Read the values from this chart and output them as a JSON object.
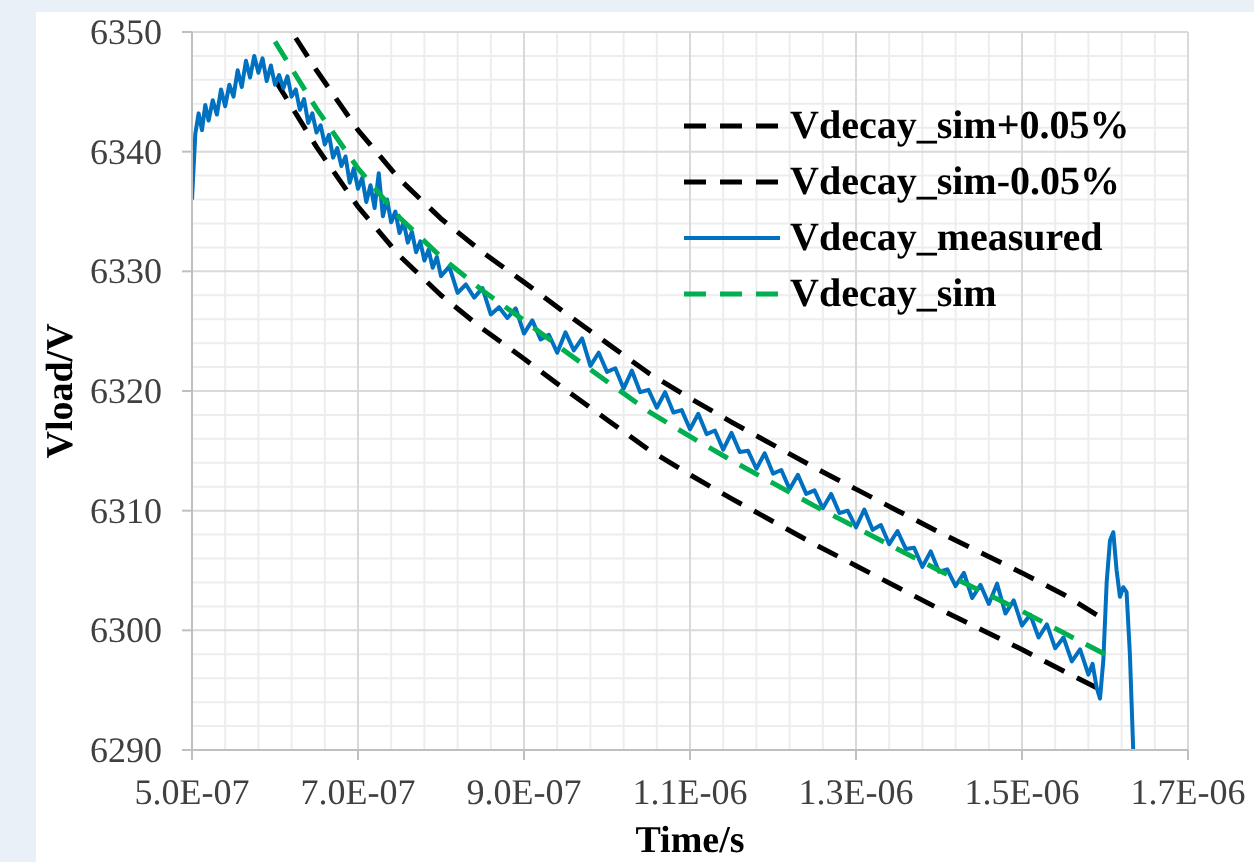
{
  "chart_data": {
    "type": "line",
    "xlabel": "Time/s",
    "ylabel": "Vload/V",
    "xlim": [
      5e-07,
      1.7e-06
    ],
    "xticks": [
      {
        "value": 5e-07,
        "label": "5.0E-07"
      },
      {
        "value": 5.4e-07,
        "label": null
      },
      {
        "value": 5.8e-07,
        "label": null
      },
      {
        "value": 6.2e-07,
        "label": null
      },
      {
        "value": 6.6e-07,
        "label": null
      },
      {
        "value": 7e-07,
        "label": "7.0E-07"
      },
      {
        "value": 7.4e-07,
        "label": null
      },
      {
        "value": 7.8e-07,
        "label": null
      },
      {
        "value": 8.2e-07,
        "label": null
      },
      {
        "value": 8.6e-07,
        "label": null
      },
      {
        "value": 9e-07,
        "label": "9.0E-07"
      },
      {
        "value": 9.4e-07,
        "label": null
      },
      {
        "value": 9.8e-07,
        "label": null
      },
      {
        "value": 1.02e-06,
        "label": null
      },
      {
        "value": 1.06e-06,
        "label": null
      },
      {
        "value": 1.1e-06,
        "label": "1.1E-06"
      },
      {
        "value": 1.14e-06,
        "label": null
      },
      {
        "value": 1.18e-06,
        "label": null
      },
      {
        "value": 1.22e-06,
        "label": null
      },
      {
        "value": 1.26e-06,
        "label": null
      },
      {
        "value": 1.3e-06,
        "label": "1.3E-06"
      },
      {
        "value": 1.34e-06,
        "label": null
      },
      {
        "value": 1.38e-06,
        "label": null
      },
      {
        "value": 1.42e-06,
        "label": null
      },
      {
        "value": 1.46e-06,
        "label": null
      },
      {
        "value": 1.5e-06,
        "label": "1.5E-06"
      },
      {
        "value": 1.54e-06,
        "label": null
      },
      {
        "value": 1.58e-06,
        "label": null
      },
      {
        "value": 1.62e-06,
        "label": null
      },
      {
        "value": 1.66e-06,
        "label": null
      },
      {
        "value": 1.7e-06,
        "label": "1.7E-06"
      }
    ],
    "ylim": [
      6290,
      6350
    ],
    "yticks": [
      6290,
      {
        "value": 6292,
        "label": null
      },
      {
        "value": 6294,
        "label": null
      },
      {
        "value": 6296,
        "label": null
      },
      {
        "value": 6298,
        "label": null
      },
      6300,
      {
        "value": 6302,
        "label": null
      },
      {
        "value": 6304,
        "label": null
      },
      {
        "value": 6306,
        "label": null
      },
      {
        "value": 6308,
        "label": null
      },
      6310,
      {
        "value": 6312,
        "label": null
      },
      {
        "value": 6314,
        "label": null
      },
      {
        "value": 6316,
        "label": null
      },
      {
        "value": 6318,
        "label": null
      },
      6320,
      {
        "value": 6322,
        "label": null
      },
      {
        "value": 6324,
        "label": null
      },
      {
        "value": 6326,
        "label": null
      },
      {
        "value": 6328,
        "label": null
      },
      6330,
      {
        "value": 6332,
        "label": null
      },
      {
        "value": 6334,
        "label": null
      },
      {
        "value": 6336,
        "label": null
      },
      {
        "value": 6338,
        "label": null
      },
      6340,
      {
        "value": 6342,
        "label": null
      },
      {
        "value": 6344,
        "label": null
      },
      {
        "value": 6346,
        "label": null
      },
      {
        "value": 6348,
        "label": null
      },
      6350
    ],
    "grid": true,
    "legend": "top right",
    "series": [
      {
        "name": "Vdecay_sim+0.05%",
        "color": "#000000",
        "line_style": "dashed",
        "x": [
          6.25e-07,
          6.5e-07,
          7e-07,
          7.5e-07,
          8e-07,
          8.5e-07,
          9e-07,
          9.5e-07,
          1e-06,
          1.05e-06,
          1.1e-06,
          1.15e-06,
          1.2e-06,
          1.25e-06,
          1.3e-06,
          1.35e-06,
          1.4e-06,
          1.45e-06,
          1.5e-06,
          1.55e-06,
          1.59e-06
        ],
        "values": [
          6349.5,
          6346.8,
          6341.8,
          6337.7,
          6334.4,
          6331.6,
          6329.1,
          6326.5,
          6324.0,
          6321.5,
          6319.4,
          6317.4,
          6315.5,
          6313.6,
          6311.8,
          6310.0,
          6308.2,
          6306.5,
          6304.8,
          6303.0,
          6301.3
        ]
      },
      {
        "name": "Vdecay_sim-0.05%",
        "color": "#000000",
        "line_style": "dashed",
        "x": [
          6e-07,
          6.5e-07,
          7e-07,
          7.5e-07,
          8e-07,
          8.5e-07,
          9e-07,
          9.5e-07,
          1e-06,
          1.05e-06,
          1.1e-06,
          1.15e-06,
          1.2e-06,
          1.25e-06,
          1.3e-06,
          1.35e-06,
          1.4e-06,
          1.45e-06,
          1.5e-06,
          1.55e-06,
          1.59e-06
        ],
        "values": [
          6346.0,
          6340.4,
          6335.4,
          6331.3,
          6328.0,
          6325.2,
          6322.7,
          6320.1,
          6317.6,
          6315.1,
          6313.0,
          6311.0,
          6309.1,
          6307.2,
          6305.4,
          6303.6,
          6301.8,
          6300.1,
          6298.4,
          6296.6,
          6295.2
        ]
      },
      {
        "name": "Vdecay_measured",
        "color": "#0070c0",
        "line_style": "solid",
        "x": [
          5e-07,
          5.04e-07,
          5.08e-07,
          5.12e-07,
          5.16e-07,
          5.2e-07,
          5.25e-07,
          5.3e-07,
          5.35e-07,
          5.4e-07,
          5.45e-07,
          5.5e-07,
          5.55e-07,
          5.6e-07,
          5.65e-07,
          5.7e-07,
          5.75e-07,
          5.8e-07,
          5.85e-07,
          5.9e-07,
          5.95e-07,
          6e-07,
          6.05e-07,
          6.1e-07,
          6.15e-07,
          6.2e-07,
          6.25e-07,
          6.3e-07,
          6.35e-07,
          6.4e-07,
          6.45e-07,
          6.5e-07,
          6.55e-07,
          6.6e-07,
          6.65e-07,
          6.7e-07,
          6.75e-07,
          6.8e-07,
          6.85e-07,
          6.9e-07,
          6.95e-07,
          7e-07,
          7.05e-07,
          7.1e-07,
          7.15e-07,
          7.2e-07,
          7.25e-07,
          7.3e-07,
          7.35e-07,
          7.4e-07,
          7.45e-07,
          7.5e-07,
          7.55e-07,
          7.6e-07,
          7.65e-07,
          7.7e-07,
          7.75e-07,
          7.8e-07,
          7.85e-07,
          7.9e-07,
          7.95e-07,
          8e-07,
          8.1e-07,
          8.2e-07,
          8.3e-07,
          8.4e-07,
          8.5e-07,
          8.6e-07,
          8.7e-07,
          8.8e-07,
          8.9e-07,
          9e-07,
          9.1e-07,
          9.2e-07,
          9.3e-07,
          9.4e-07,
          9.5e-07,
          9.6e-07,
          9.7e-07,
          9.8e-07,
          9.9e-07,
          1e-06,
          1.01e-06,
          1.02e-06,
          1.03e-06,
          1.04e-06,
          1.05e-06,
          1.06e-06,
          1.07e-06,
          1.08e-06,
          1.09e-06,
          1.1e-06,
          1.11e-06,
          1.12e-06,
          1.13e-06,
          1.14e-06,
          1.15e-06,
          1.16e-06,
          1.17e-06,
          1.18e-06,
          1.19e-06,
          1.2e-06,
          1.21e-06,
          1.22e-06,
          1.23e-06,
          1.24e-06,
          1.25e-06,
          1.26e-06,
          1.27e-06,
          1.28e-06,
          1.29e-06,
          1.3e-06,
          1.31e-06,
          1.32e-06,
          1.33e-06,
          1.34e-06,
          1.35e-06,
          1.36e-06,
          1.37e-06,
          1.38e-06,
          1.39e-06,
          1.4e-06,
          1.41e-06,
          1.42e-06,
          1.43e-06,
          1.44e-06,
          1.45e-06,
          1.46e-06,
          1.47e-06,
          1.48e-06,
          1.49e-06,
          1.5e-06,
          1.51e-06,
          1.52e-06,
          1.53e-06,
          1.54e-06,
          1.55e-06,
          1.56e-06,
          1.57e-06,
          1.58e-06,
          1.585e-06,
          1.59e-06,
          1.594e-06,
          1.598e-06,
          1.602e-06,
          1.606e-06,
          1.61e-06,
          1.614e-06,
          1.618e-06,
          1.622e-06,
          1.626e-06,
          1.63e-06,
          1.634e-06
        ],
        "values": [
          6336.0,
          6341.5,
          6343.2,
          6341.8,
          6343.9,
          6342.6,
          6344.3,
          6343.1,
          6345.2,
          6343.8,
          6345.6,
          6344.6,
          6346.8,
          6345.4,
          6347.6,
          6346.2,
          6348.0,
          6346.6,
          6347.8,
          6345.9,
          6347.2,
          6345.6,
          6346.4,
          6345.3,
          6346.3,
          6344.6,
          6345.2,
          6343.5,
          6344.4,
          6342.4,
          6343.2,
          6341.6,
          6342.2,
          6340.6,
          6341.4,
          6339.5,
          6340.3,
          6338.8,
          6339.6,
          6337.4,
          6338.6,
          6336.9,
          6337.8,
          6335.8,
          6337.2,
          6335.3,
          6338.2,
          6334.6,
          6336.0,
          6334.1,
          6335.0,
          6333.2,
          6334.1,
          6332.4,
          6333.3,
          6331.6,
          6332.5,
          6330.9,
          6331.8,
          6330.3,
          6331.2,
          6329.6,
          6330.4,
          6328.2,
          6328.9,
          6327.8,
          6328.6,
          6326.4,
          6327.0,
          6326.1,
          6326.9,
          6324.8,
          6325.9,
          6324.3,
          6324.7,
          6323.2,
          6324.9,
          6323.4,
          6324.4,
          6322.1,
          6323.2,
          6321.6,
          6321.9,
          6320.2,
          6321.7,
          6319.9,
          6320.1,
          6318.6,
          6319.9,
          6318.2,
          6318.4,
          6316.8,
          6318.1,
          6316.4,
          6316.7,
          6315.1,
          6316.5,
          6314.9,
          6315.0,
          6313.5,
          6314.8,
          6313.1,
          6313.4,
          6311.8,
          6313.0,
          6311.4,
          6311.7,
          6310.2,
          6311.4,
          6309.8,
          6310.0,
          6308.6,
          6310.1,
          6308.4,
          6308.8,
          6307.2,
          6308.3,
          6306.8,
          6306.9,
          6305.3,
          6306.6,
          6304.9,
          6305.1,
          6303.7,
          6304.8,
          6302.7,
          6303.8,
          6302.2,
          6303.9,
          6301.4,
          6302.5,
          6300.4,
          6301.3,
          6299.4,
          6300.5,
          6298.5,
          6299.4,
          6297.4,
          6298.4,
          6296.3,
          6297.2,
          6295.2,
          6294.3,
          6297.5,
          6304.0,
          6307.5,
          6308.2,
          6305.0,
          6302.8,
          6303.6,
          6303.2,
          6298.0,
          6290.0
        ]
      },
      {
        "name": "Vdecay_sim",
        "color": "#00b050",
        "line_style": "dashed",
        "x": [
          6e-07,
          6.5e-07,
          7e-07,
          7.5e-07,
          8e-07,
          8.5e-07,
          9e-07,
          9.5e-07,
          1e-06,
          1.05e-06,
          1.1e-06,
          1.15e-06,
          1.2e-06,
          1.25e-06,
          1.3e-06,
          1.35e-06,
          1.4e-06,
          1.45e-06,
          1.5e-06,
          1.55e-06,
          1.6e-06
        ],
        "values": [
          6349.2,
          6343.6,
          6338.6,
          6334.5,
          6331.2,
          6328.4,
          6325.9,
          6323.3,
          6320.8,
          6318.3,
          6316.2,
          6314.2,
          6312.3,
          6310.4,
          6308.6,
          6306.8,
          6305.0,
          6303.3,
          6301.6,
          6299.8,
          6298.0
        ]
      }
    ]
  }
}
